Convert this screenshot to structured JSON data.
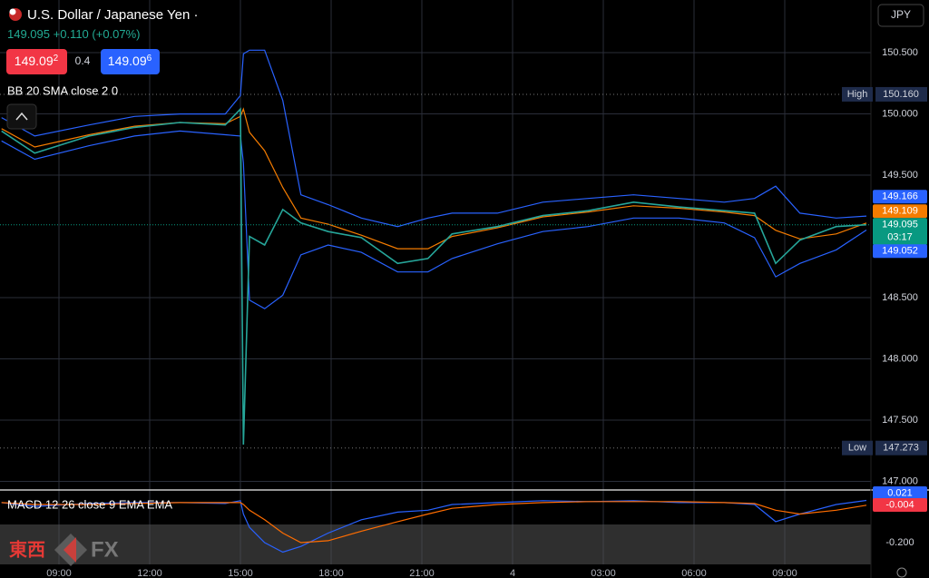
{
  "header": {
    "title": "U.S. Dollar / Japanese Yen ·",
    "quote": "149.095",
    "change": "+0.110 (+0.07%)",
    "sell": "149.09",
    "sell_pip": "2",
    "spread": "0.4",
    "buy": "149.09",
    "buy_pip": "6",
    "currency": "JPY",
    "watermark": [
      "東西",
      "FX"
    ]
  },
  "chart_data": [
    {
      "type": "line",
      "title": "BB 20 SMA close 2 0",
      "x": [
        -1.9,
        -0.8,
        1,
        2.5,
        4,
        5.5,
        6,
        6.1,
        6.3,
        6.8,
        7.4,
        8,
        8.9,
        10,
        11.2,
        12.2,
        13,
        14.5,
        16,
        17.5,
        19,
        20.5,
        22,
        23,
        23.7,
        24.5,
        25.7,
        26.7
      ],
      "xlim": [
        -1.95,
        26.85
      ],
      "xticks": [
        {
          "value": 0,
          "label": "09:00"
        },
        {
          "value": 3,
          "label": "12:00"
        },
        {
          "value": 6,
          "label": "15:00"
        },
        {
          "value": 9,
          "label": "18:00"
        },
        {
          "value": 12,
          "label": "21:00"
        },
        {
          "value": 15,
          "label": "4"
        },
        {
          "value": 18,
          "label": "03:00"
        },
        {
          "value": 21,
          "label": "06:00"
        },
        {
          "value": 24,
          "label": "09:00"
        }
      ],
      "ylim": [
        146.93,
        150.93
      ],
      "yticks": [
        {
          "value": 150.5,
          "label": "150.500"
        },
        {
          "value": 150,
          "label": "150.000"
        },
        {
          "value": 149.5,
          "label": "149.500"
        },
        {
          "value": 148.5,
          "label": "148.500"
        },
        {
          "value": 148,
          "label": "148.000"
        },
        {
          "value": 147.5,
          "label": "147.500"
        },
        {
          "value": 147,
          "label": "147.000"
        }
      ],
      "grid": true,
      "series": [
        {
          "color": "#2962ff",
          "values": [
            149.97,
            149.82,
            149.91,
            149.98,
            150.0,
            150.0,
            150.15,
            150.49,
            150.52,
            150.52,
            150.11,
            149.34,
            149.26,
            149.15,
            149.08,
            149.15,
            149.19,
            149.19,
            149.28,
            149.31,
            149.34,
            149.31,
            149.28,
            149.31,
            149.41,
            149.19,
            149.15,
            149.166
          ]
        },
        {
          "color": "#2962ff",
          "values": [
            149.78,
            149.63,
            149.74,
            149.82,
            149.86,
            149.83,
            149.82,
            149.6,
            148.48,
            148.41,
            148.52,
            148.85,
            148.93,
            148.87,
            148.71,
            148.71,
            148.82,
            148.94,
            149.04,
            149.08,
            149.15,
            149.15,
            149.11,
            148.99,
            148.67,
            148.78,
            148.89,
            149.052
          ]
        },
        {
          "color": "#f57c00",
          "values": [
            149.88,
            149.73,
            149.83,
            149.9,
            149.93,
            149.92,
            149.98,
            150.04,
            149.85,
            149.7,
            149.4,
            149.15,
            149.1,
            149.01,
            148.9,
            148.9,
            149.0,
            149.07,
            149.16,
            149.2,
            149.25,
            149.23,
            149.2,
            149.17,
            149.05,
            148.98,
            149.02,
            149.109
          ]
        },
        {
          "color": "#26a69a",
          "values": [
            149.86,
            149.68,
            149.82,
            149.89,
            149.93,
            149.91,
            150.04,
            147.3,
            149.0,
            148.93,
            149.22,
            149.11,
            149.04,
            148.99,
            148.78,
            148.82,
            149.02,
            149.08,
            149.17,
            149.21,
            149.28,
            149.24,
            149.21,
            149.19,
            148.78,
            148.97,
            149.08,
            149.095
          ]
        }
      ],
      "high": {
        "name": "High",
        "value": 150.16,
        "label": "150.160"
      },
      "low": {
        "name": "Low",
        "value": 147.273,
        "label": "147.273"
      },
      "markers": [
        {
          "value": 149.166,
          "color": "#2962ff"
        },
        {
          "value": 149.109,
          "color": "#f57c00"
        },
        {
          "value": 149.095,
          "color": "#089981"
        },
        {
          "value": 149.052,
          "color": "#2962ff"
        }
      ],
      "countdown": "03:17"
    },
    {
      "type": "line",
      "title": "MACD 12 26 close 9 EMA EMA",
      "x": [
        -1.9,
        -0.8,
        1,
        2.5,
        4,
        5.5,
        6,
        6.1,
        6.3,
        6.8,
        7.4,
        8,
        8.9,
        10,
        11.2,
        12.2,
        13,
        14.5,
        16,
        17.5,
        19,
        20.5,
        22,
        23,
        23.7,
        24.5,
        25.7,
        26.7
      ],
      "xlim": [
        -1.95,
        26.85
      ],
      "ylim": [
        -0.305,
        0.076
      ],
      "yticks": [
        {
          "value": -0.2,
          "label": "-0.200"
        }
      ],
      "series": [
        {
          "color": "#2962ff",
          "values": [
            0.01,
            -0.01,
            0.005,
            0.01,
            0.01,
            0.005,
            0.02,
            -0.05,
            -0.12,
            -0.2,
            -0.25,
            -0.22,
            -0.15,
            -0.08,
            -0.04,
            -0.03,
            0,
            0.01,
            0.02,
            0.015,
            0.02,
            0.01,
            0.01,
            0,
            -0.09,
            -0.05,
            0,
            0.021
          ]
        },
        {
          "color": "#ff6d00",
          "values": [
            0.01,
            0,
            0,
            0.005,
            0.01,
            0.01,
            0.01,
            0,
            -0.03,
            -0.08,
            -0.15,
            -0.2,
            -0.19,
            -0.14,
            -0.09,
            -0.05,
            -0.02,
            0,
            0.01,
            0.015,
            0.015,
            0.015,
            0.01,
            0.005,
            -0.03,
            -0.05,
            -0.03,
            -0.004
          ]
        }
      ],
      "markers": [
        {
          "value": 0.021,
          "color": "#2962ff"
        },
        {
          "value": -0.004,
          "color": "#f23645"
        }
      ]
    }
  ]
}
